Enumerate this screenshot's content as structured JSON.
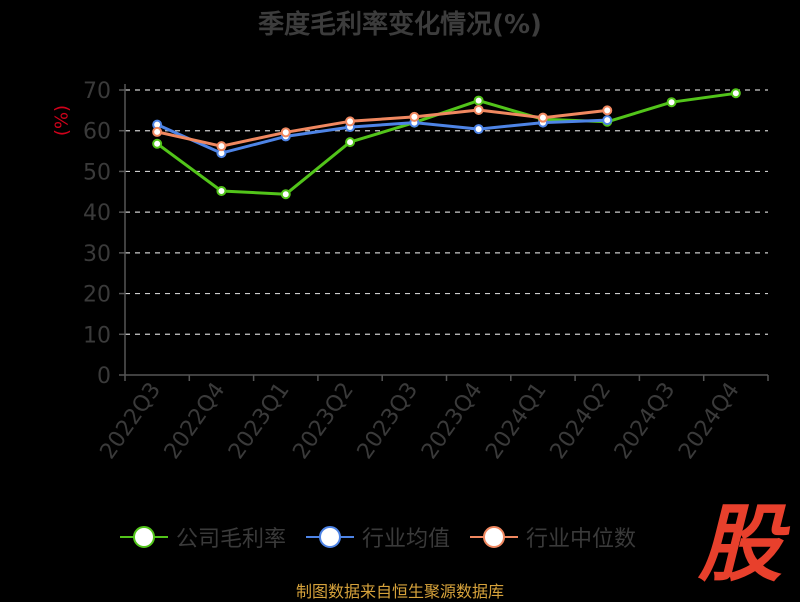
{
  "title": "季度毛利率变化情况(%)",
  "source": "制图数据来自恒生聚源数据库",
  "logo_text": "股",
  "colors": {
    "company": "#52c41a",
    "industry_avg": "#4e84e6",
    "industry_median": "#f08860",
    "grid": "#cccccc",
    "axis": "#555555",
    "tick_text": "#3a3a3a",
    "title": "#3c3c3c"
  },
  "chart_data": {
    "type": "line",
    "title": "季度毛利率变化情况(%)",
    "xlabel": "",
    "ylabel": "(%)",
    "ylim": [
      0,
      70
    ],
    "yticks": [
      0,
      10,
      20,
      30,
      40,
      50,
      60,
      70
    ],
    "grid": true,
    "legend_position": "bottom",
    "categories": [
      "2022Q3",
      "2022Q4",
      "2023Q1",
      "2023Q2",
      "2023Q3",
      "2023Q4",
      "2024Q1",
      "2024Q2",
      "2024Q3",
      "2024Q4"
    ],
    "series": [
      {
        "key": "company",
        "name": "公司毛利率",
        "values": [
          56.8,
          45.2,
          44.4,
          57.2,
          62.0,
          67.4,
          62.8,
          62.2,
          67.0,
          69.2
        ]
      },
      {
        "key": "industry_avg",
        "name": "行业均值",
        "values": [
          61.5,
          54.5,
          58.6,
          60.9,
          62.0,
          60.4,
          62.0,
          62.6,
          null,
          null
        ]
      },
      {
        "key": "industry_median",
        "name": "行业中位数",
        "values": [
          59.7,
          56.2,
          59.6,
          62.3,
          63.4,
          65.1,
          63.2,
          65.0,
          null,
          null
        ]
      }
    ]
  }
}
